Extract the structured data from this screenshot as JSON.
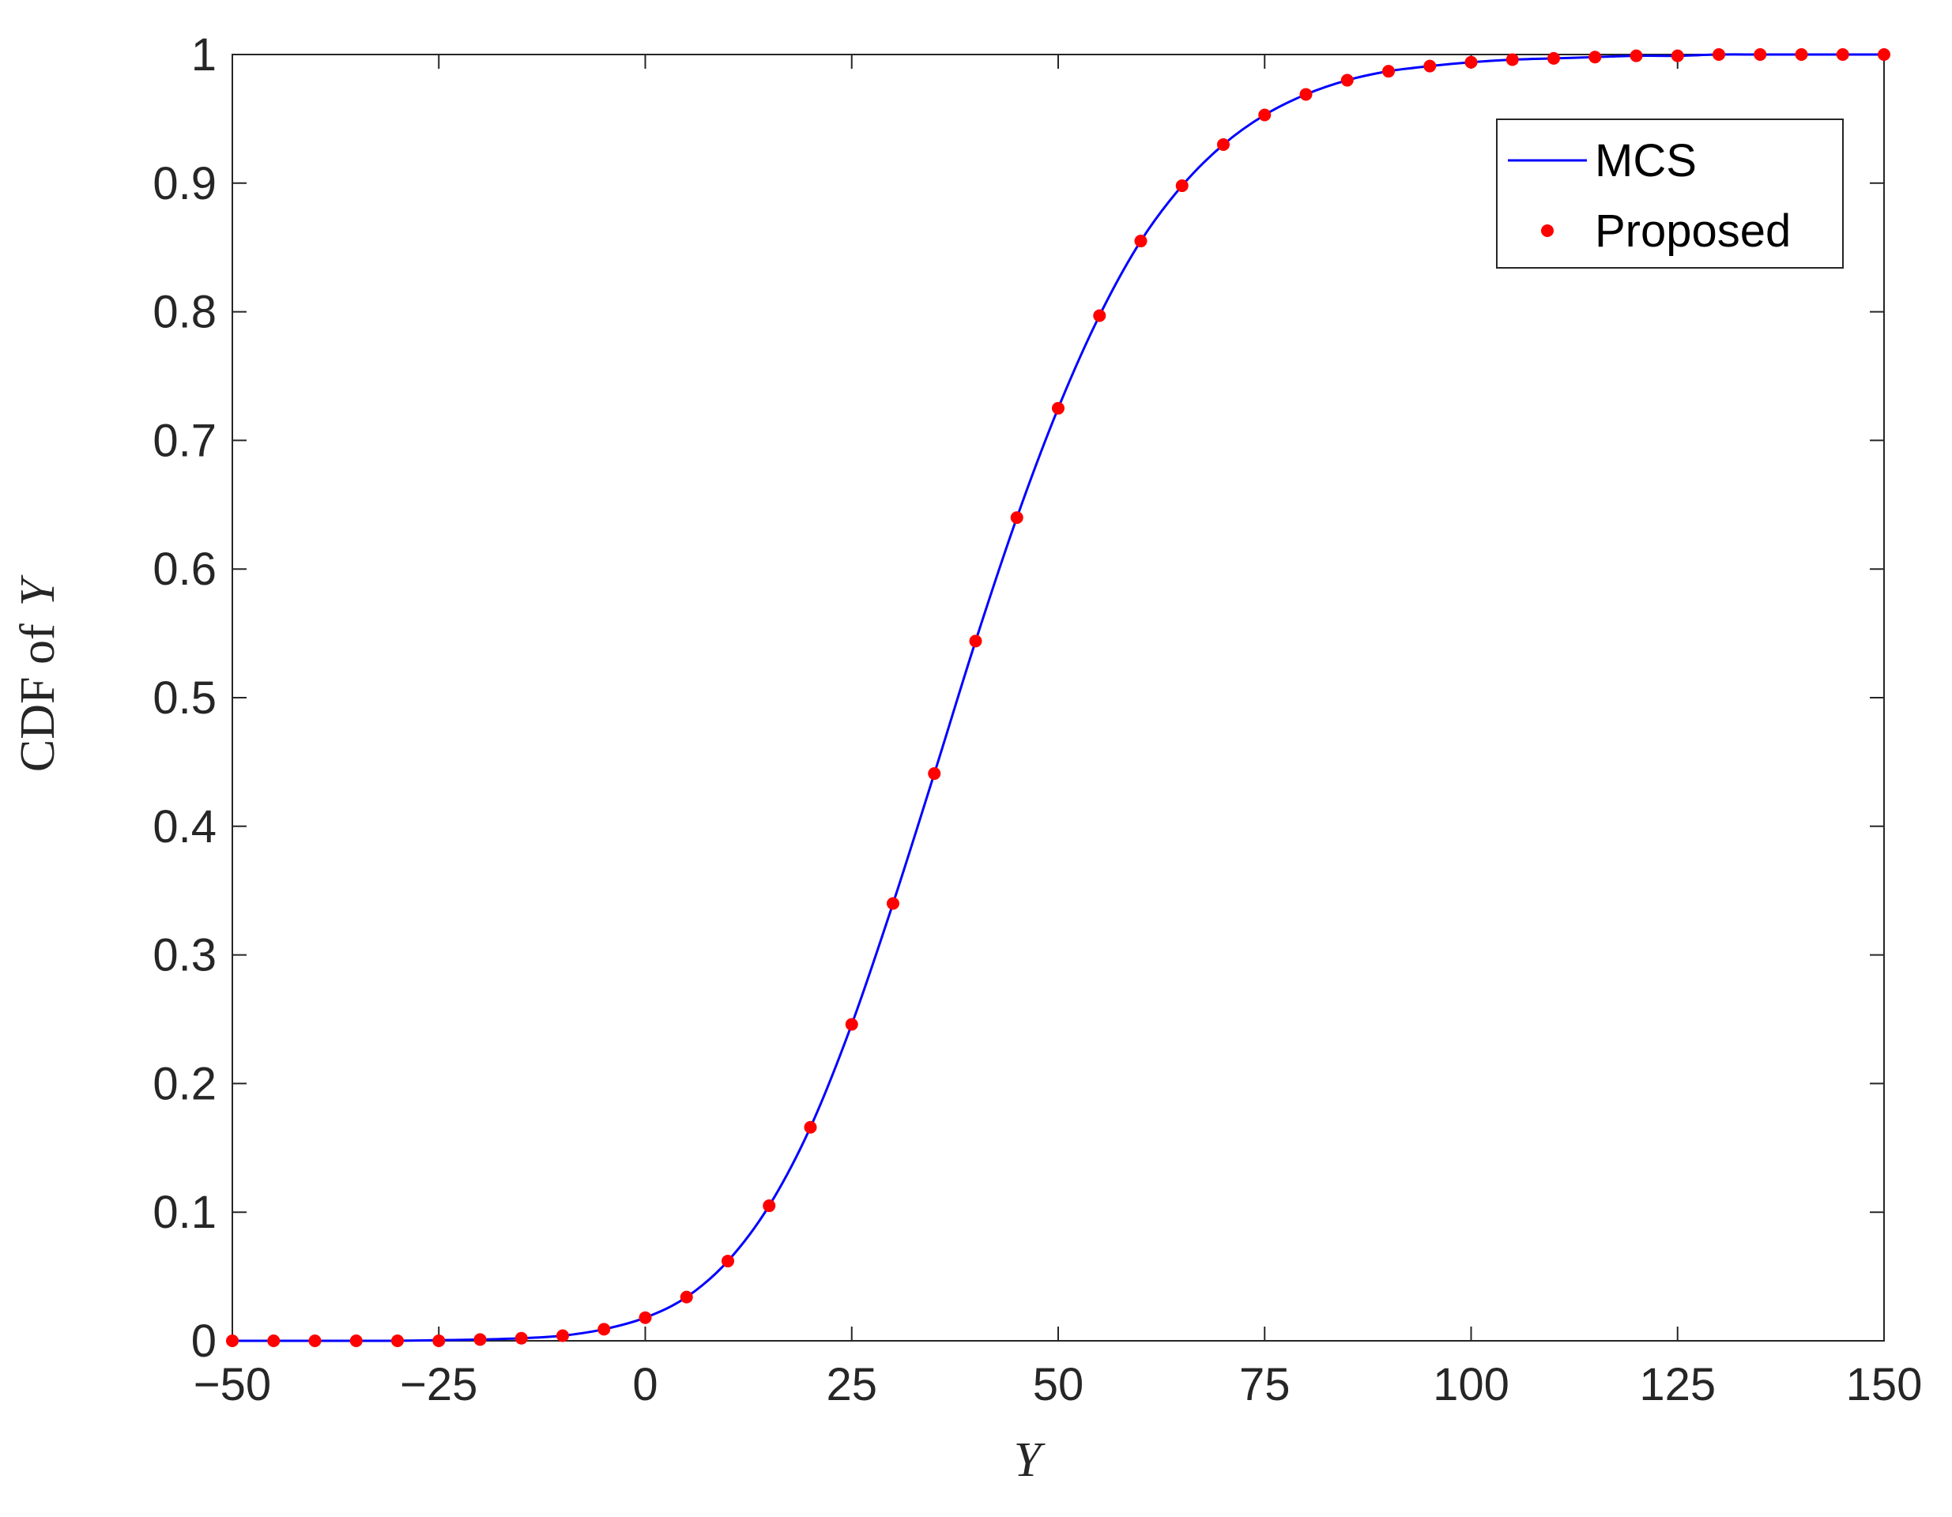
{
  "chart_data": {
    "type": "line",
    "xlabel": "Y",
    "ylabel_prefix": "CDF of",
    "ylabel_var": "Y",
    "xlim": [
      -50,
      150
    ],
    "ylim": [
      0,
      1
    ],
    "xticks": [
      -50,
      -25,
      0,
      25,
      50,
      75,
      100,
      125,
      150
    ],
    "xtick_labels": [
      "−50",
      "−25",
      "0",
      "25",
      "50",
      "75",
      "100",
      "125",
      "150"
    ],
    "yticks": [
      0,
      0.1,
      0.2,
      0.3,
      0.4,
      0.5,
      0.6,
      0.7,
      0.8,
      0.9,
      1
    ],
    "ytick_labels": [
      "0",
      "0.1",
      "0.2",
      "0.3",
      "0.4",
      "0.5",
      "0.6",
      "0.7",
      "0.8",
      "0.9",
      "1"
    ],
    "grid": false,
    "legend_position": "top-right",
    "colors": {
      "mcs": "#0000ff",
      "proposed": "#ff0000",
      "axes": "#262626"
    },
    "series": [
      {
        "name": "MCS",
        "style": "line",
        "x": [
          -50,
          -45,
          -40,
          -35,
          -30,
          -25,
          -20,
          -15,
          -10,
          -5,
          0,
          5,
          10,
          15,
          20,
          25,
          30,
          35,
          40,
          45,
          50,
          55,
          60,
          65,
          70,
          75,
          80,
          85,
          90,
          95,
          100,
          105,
          110,
          115,
          120,
          125,
          130,
          135,
          140,
          145,
          150
        ],
        "y": [
          0,
          0,
          0,
          0,
          0,
          0.0005,
          0.001,
          0.002,
          0.004,
          0.009,
          0.018,
          0.034,
          0.062,
          0.105,
          0.166,
          0.246,
          0.34,
          0.441,
          0.544,
          0.64,
          0.725,
          0.797,
          0.855,
          0.898,
          0.93,
          0.953,
          0.969,
          0.98,
          0.987,
          0.991,
          0.994,
          0.996,
          0.997,
          0.998,
          0.999,
          0.999,
          1.0,
          1.0,
          1.0,
          1.0,
          1.0
        ]
      },
      {
        "name": "Proposed",
        "style": "markers",
        "x": [
          -50,
          -45,
          -40,
          -35,
          -30,
          -25,
          -20,
          -15,
          -10,
          -5,
          0,
          5,
          10,
          15,
          20,
          25,
          30,
          35,
          40,
          45,
          50,
          55,
          60,
          65,
          70,
          75,
          80,
          85,
          90,
          95,
          100,
          105,
          110,
          115,
          120,
          125,
          130,
          135,
          140,
          145,
          150
        ],
        "y": [
          0,
          0,
          0,
          0,
          0,
          0,
          0.001,
          0.002,
          0.004,
          0.009,
          0.018,
          0.034,
          0.062,
          0.105,
          0.166,
          0.246,
          0.34,
          0.441,
          0.544,
          0.64,
          0.725,
          0.797,
          0.855,
          0.898,
          0.93,
          0.953,
          0.969,
          0.98,
          0.987,
          0.991,
          0.994,
          0.996,
          0.997,
          0.998,
          0.999,
          0.999,
          1.0,
          1.0,
          1.0,
          1.0,
          1.0
        ]
      }
    ]
  }
}
